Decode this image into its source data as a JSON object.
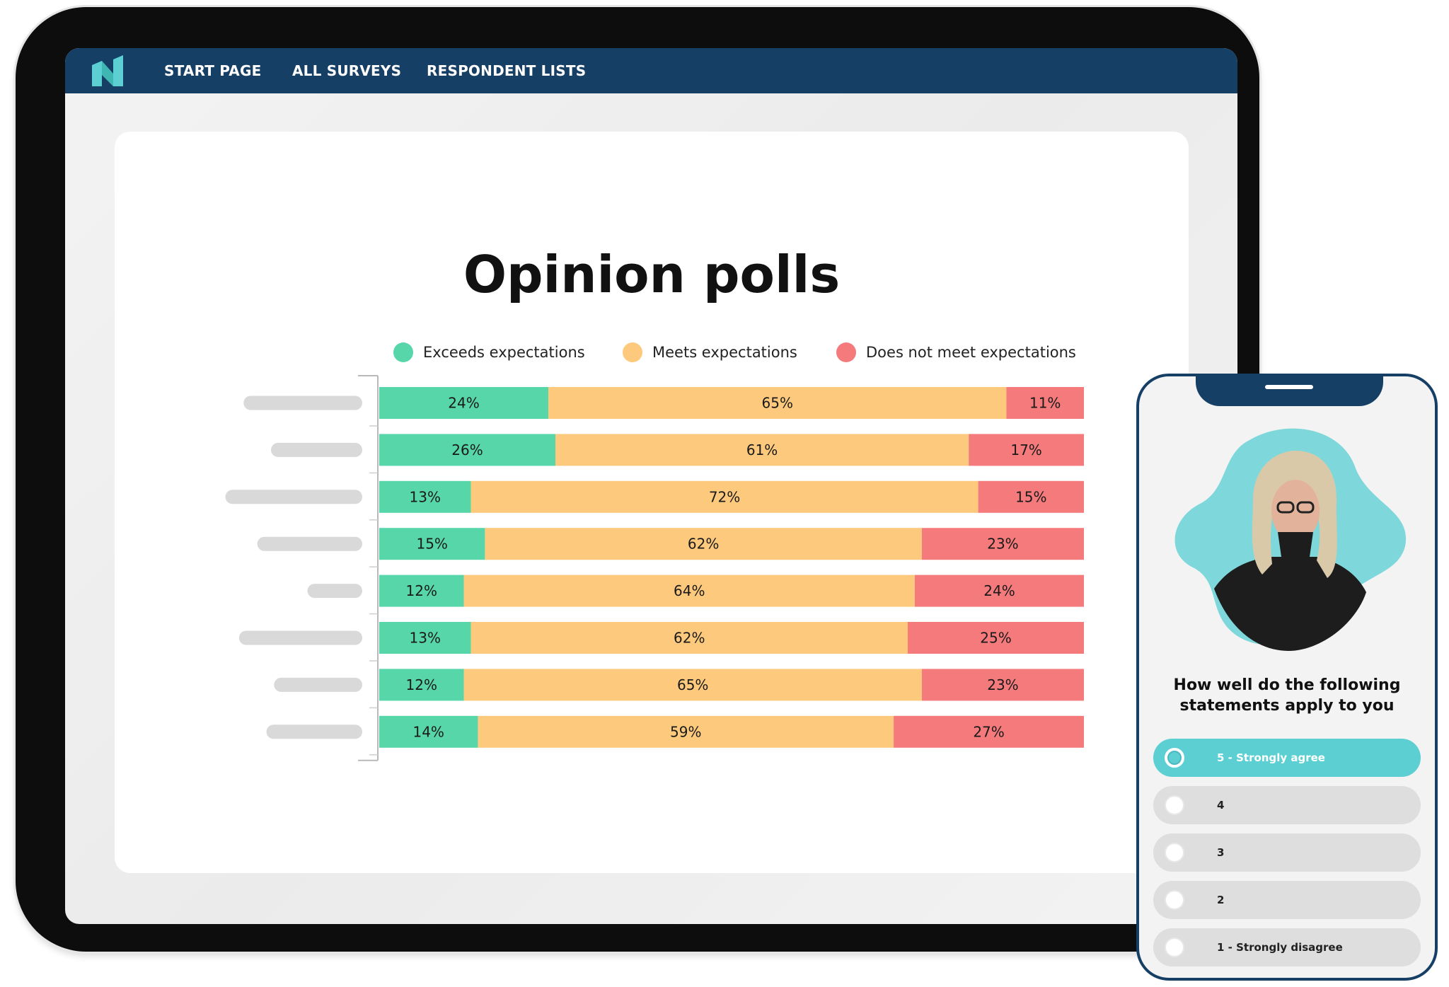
{
  "nav": {
    "items": [
      {
        "label": "START PAGE"
      },
      {
        "label": "ALL SURVEYS"
      },
      {
        "label": "RESPONDENT LISTS"
      }
    ]
  },
  "page": {
    "title": "Opinion polls"
  },
  "colors": {
    "exceeds": "#56d6a9",
    "meets": "#fdc97c",
    "not_meet": "#f47a7c",
    "brand": "#163f66",
    "accent": "#5ccfd3"
  },
  "chart_data": {
    "type": "bar",
    "orientation": "horizontal",
    "stacked": true,
    "percent": true,
    "legend_position": "top",
    "category_labels": "redacted placeholder bars",
    "series": [
      {
        "name": "Exceeds expectations",
        "color": "#56d6a9",
        "values": [
          24,
          26,
          13,
          15,
          12,
          13,
          12,
          14
        ]
      },
      {
        "name": "Meets expectations",
        "color": "#fdc97c",
        "values": [
          65,
          61,
          72,
          62,
          64,
          62,
          65,
          59
        ]
      },
      {
        "name": "Does not meet expectations",
        "color": "#f47a7c",
        "values": [
          11,
          17,
          15,
          23,
          24,
          25,
          23,
          27
        ]
      }
    ],
    "placeholder_lengths": [
      0.78,
      0.6,
      0.9,
      0.69,
      0.36,
      0.81,
      0.58,
      0.63
    ]
  },
  "phone": {
    "question": "How well do the following statements apply to you",
    "options": [
      {
        "label": "5 - Strongly agree",
        "selected": true
      },
      {
        "label": "4",
        "selected": false
      },
      {
        "label": "3",
        "selected": false
      },
      {
        "label": "2",
        "selected": false
      },
      {
        "label": "1 - Strongly disagree",
        "selected": false
      }
    ]
  }
}
